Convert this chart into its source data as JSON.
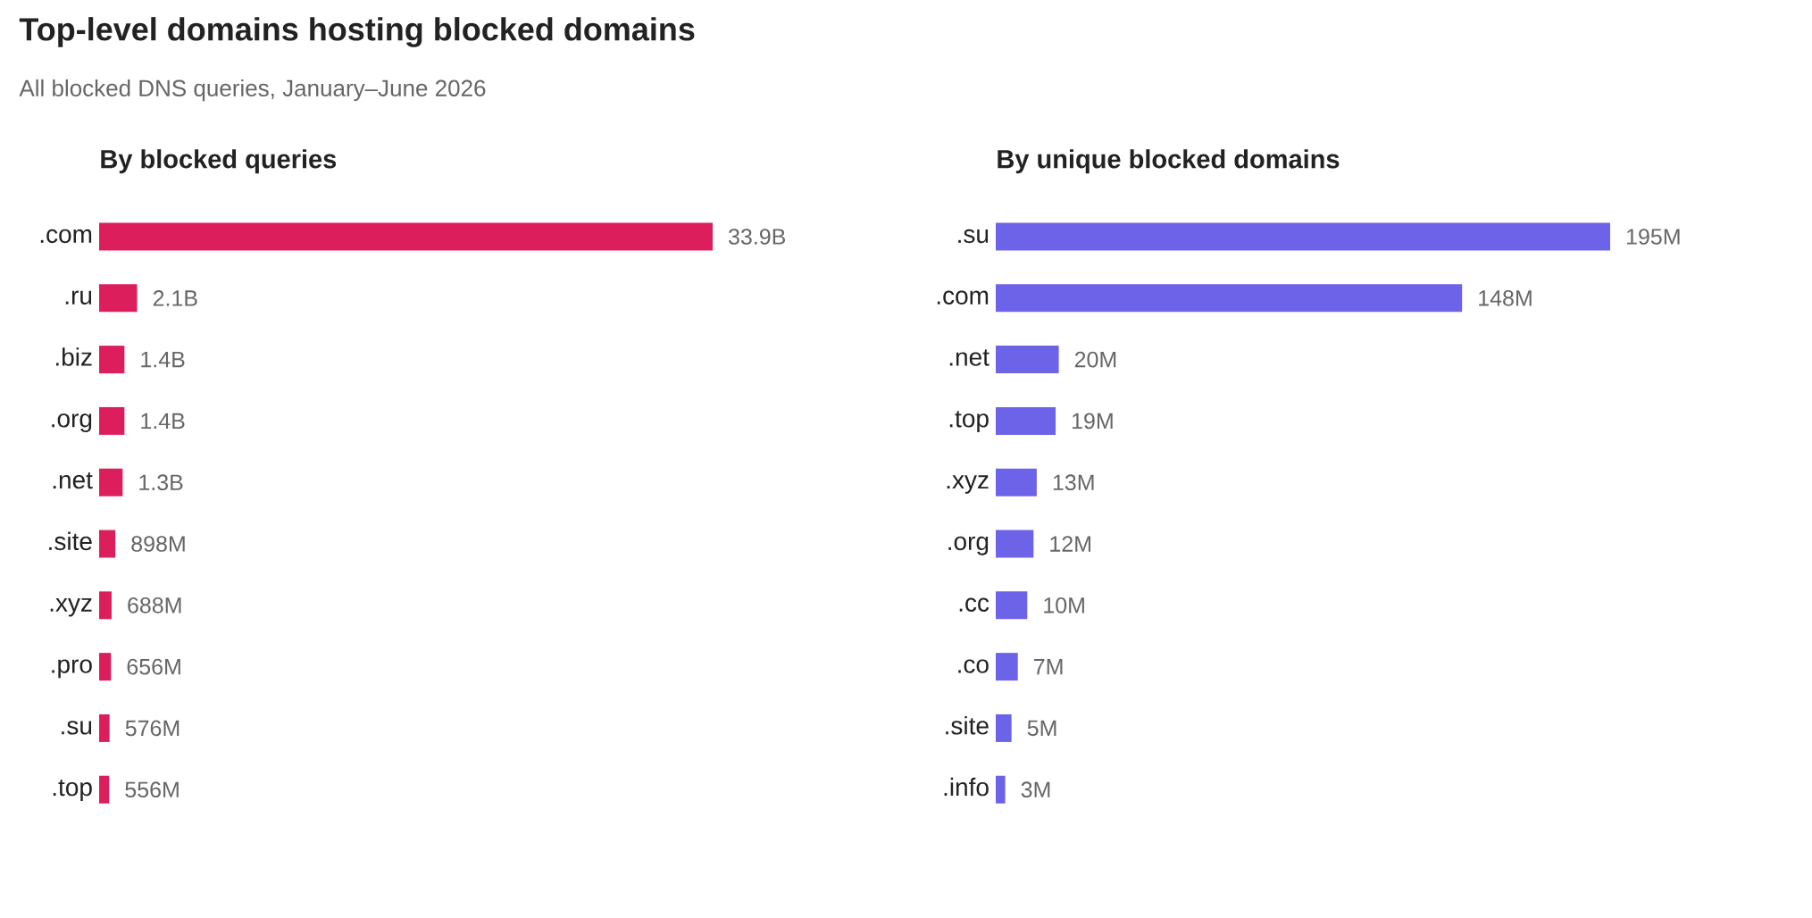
{
  "chart_data": [
    {
      "type": "bar",
      "orientation": "horizontal",
      "title": "By blocked queries",
      "annotations": [
        "Top-level domains hosting blocked domains",
        "All blocked DNS queries, January–June 2026"
      ],
      "color": "#dc1e5c",
      "categories": [
        ".com",
        ".ru",
        ".biz",
        ".org",
        ".net",
        ".site",
        ".xyz",
        ".pro",
        ".su",
        ".top"
      ],
      "values": [
        33900000000,
        2100000000,
        1400000000,
        1400000000,
        1300000000,
        898000000,
        688000000,
        656000000,
        576000000,
        556000000
      ],
      "value_labels": [
        "33.9B",
        "2.1B",
        "1.4B",
        "1.4B",
        "1.3B",
        "898M",
        "688M",
        "656M",
        "576M",
        "556M"
      ]
    },
    {
      "type": "bar",
      "orientation": "horizontal",
      "title": "By unique blocked domains",
      "color": "#6c63e8",
      "categories": [
        ".su",
        ".com",
        ".net",
        ".top",
        ".xyz",
        ".org",
        ".cc",
        ".co",
        ".site",
        ".info"
      ],
      "values": [
        195000000,
        148000000,
        20000000,
        19000000,
        13000000,
        12000000,
        10000000,
        7000000,
        5000000,
        3000000
      ],
      "value_labels": [
        "195M",
        "148M",
        "20M",
        "19M",
        "13M",
        "12M",
        "10M",
        "7M",
        "5M",
        "3M"
      ]
    }
  ]
}
